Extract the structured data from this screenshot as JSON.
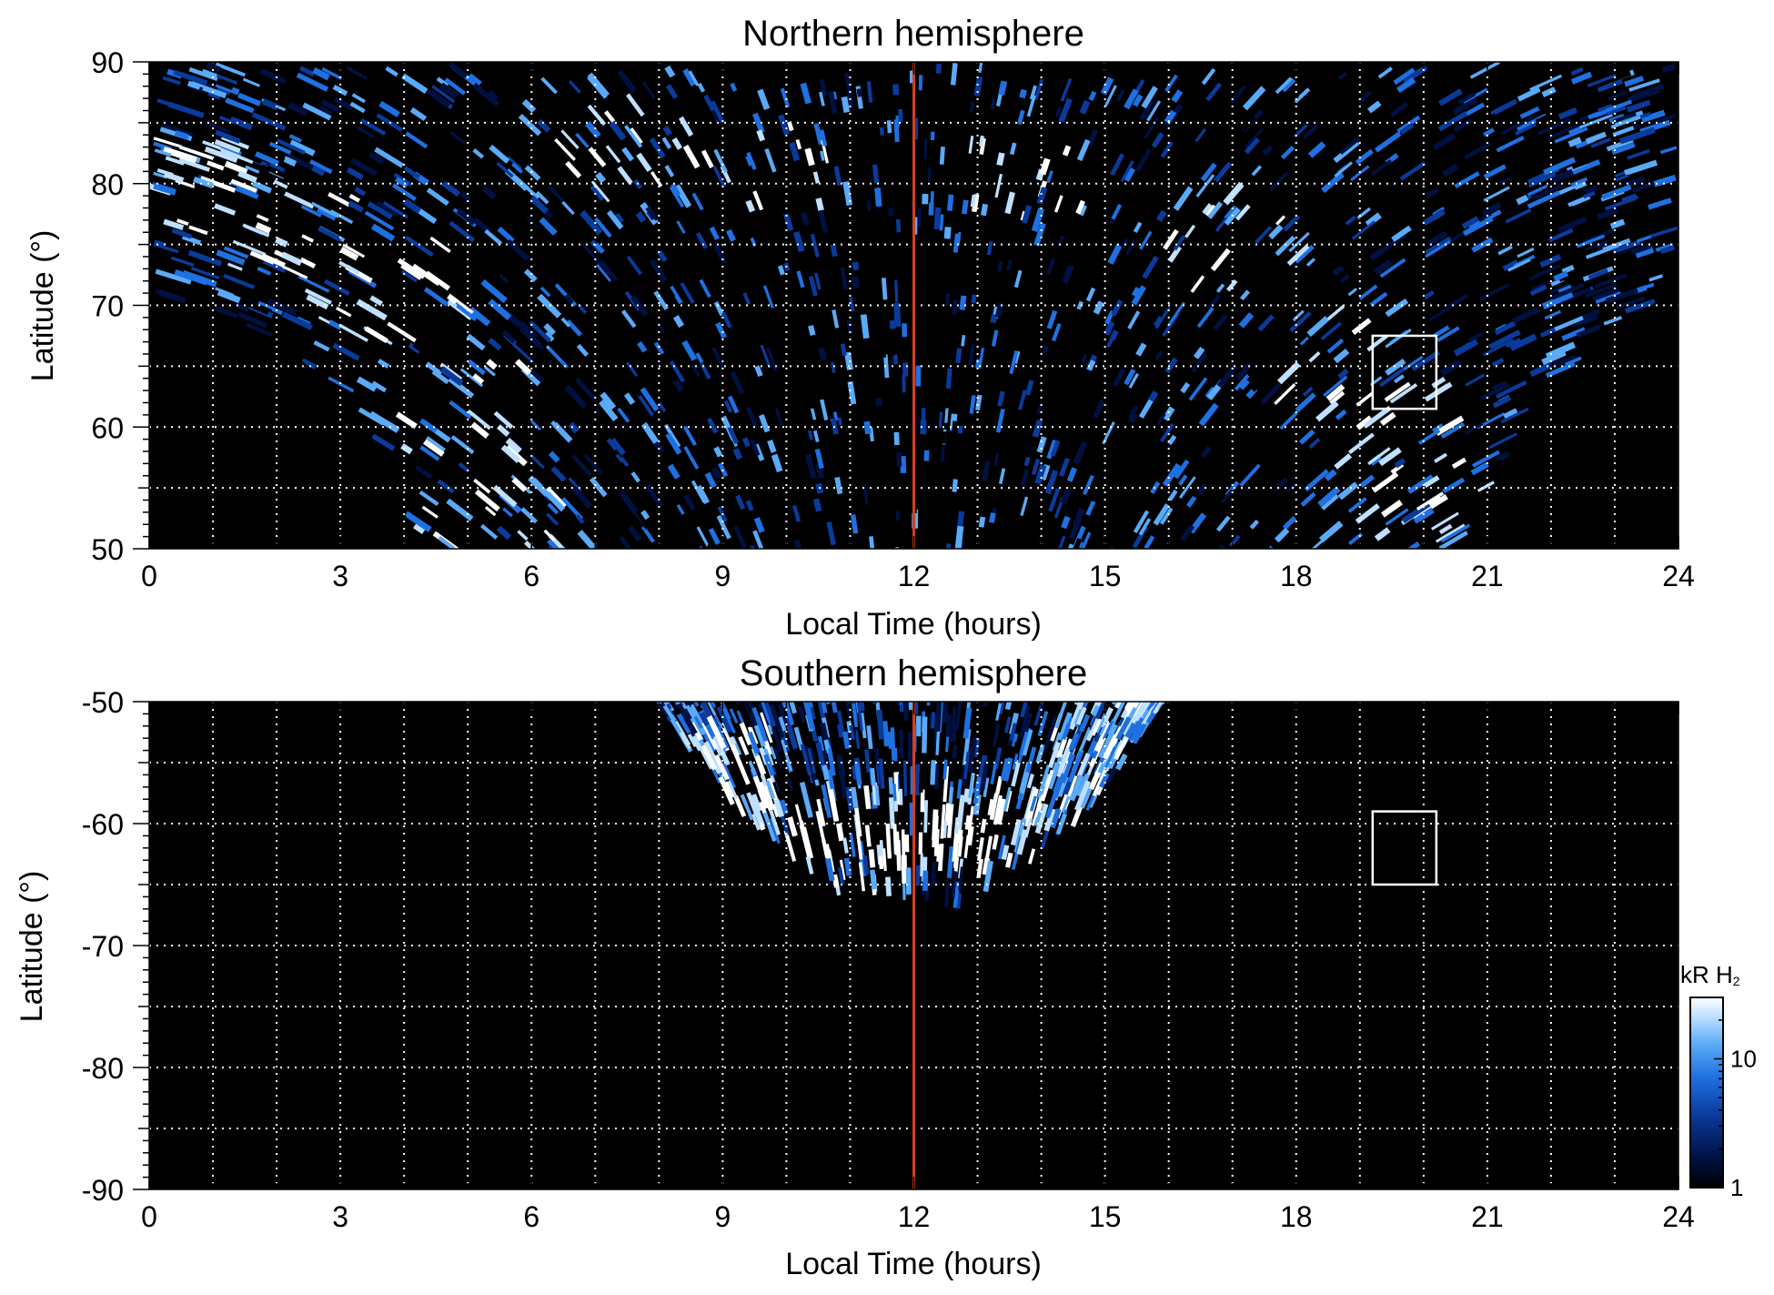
{
  "chart_data": [
    {
      "type": "heatmap",
      "title": "Northern hemisphere",
      "xlabel": "Local Time (hours)",
      "ylabel": "Latitude (°)",
      "xlim": [
        0,
        24
      ],
      "ylim": [
        50,
        90
      ],
      "xticks": [
        "0",
        "3",
        "6",
        "9",
        "12",
        "15",
        "18",
        "21",
        "24"
      ],
      "yticks": [
        "50",
        "60",
        "70",
        "80",
        "90"
      ],
      "grid": true,
      "marker_line": {
        "local_time": 12,
        "color": "#d2401e"
      },
      "highlight_box": {
        "lt_range": [
          19.2,
          20.2
        ],
        "lat_range": [
          61.5,
          67.5
        ]
      },
      "coverage_lower_boundary": [
        [
          0,
          71
        ],
        [
          1,
          69.5
        ],
        [
          2,
          67
        ],
        [
          3,
          63
        ],
        [
          3.6,
          58
        ],
        [
          4,
          53
        ],
        [
          4.25,
          50
        ],
        [
          20.7,
          50
        ],
        [
          21.1,
          55
        ],
        [
          21.6,
          60
        ],
        [
          22.2,
          64
        ],
        [
          23,
          68
        ],
        [
          24,
          71.5
        ]
      ],
      "auroral_oval_lat_vs_lt": [
        [
          0,
          80
        ],
        [
          2,
          77
        ],
        [
          3.5,
          72
        ],
        [
          4.6,
          62
        ],
        [
          5.2,
          52
        ],
        [
          7.5,
          84
        ],
        [
          10,
          82
        ],
        [
          14,
          80
        ],
        [
          17,
          76
        ],
        [
          19,
          66
        ],
        [
          19.5,
          60
        ],
        [
          20,
          53
        ]
      ]
    },
    {
      "type": "heatmap",
      "title": "Southern hemisphere",
      "xlabel": "Local Time (hours)",
      "ylabel": "Latitude (°)",
      "xlim": [
        0,
        24
      ],
      "ylim": [
        -90,
        -50
      ],
      "xticks": [
        "0",
        "3",
        "6",
        "9",
        "12",
        "15",
        "18",
        "21",
        "24"
      ],
      "yticks": [
        "-90",
        "-80",
        "-70",
        "-60",
        "-50"
      ],
      "grid": true,
      "marker_line": {
        "local_time": 12,
        "color": "#d2401e"
      },
      "highlight_box": {
        "lt_range": [
          19.2,
          20.2
        ],
        "lat_range": [
          -65,
          -59
        ]
      },
      "coverage_outer_boundary": [
        [
          8,
          -50
        ],
        [
          8.6,
          -55
        ],
        [
          9.4,
          -60
        ],
        [
          10.3,
          -64
        ],
        [
          11.2,
          -67.5
        ],
        [
          12,
          -66
        ],
        [
          12.8,
          -67.5
        ],
        [
          13.7,
          -64
        ],
        [
          14.6,
          -60
        ],
        [
          15.3,
          -55
        ],
        [
          15.9,
          -50
        ]
      ],
      "auroral_oval_lat_vs_lt": [
        [
          9,
          -56
        ],
        [
          10,
          -61
        ],
        [
          11,
          -63
        ],
        [
          12,
          -61
        ],
        [
          13,
          -62
        ],
        [
          14,
          -59
        ],
        [
          15,
          -53
        ]
      ]
    }
  ],
  "colorbar": {
    "title_kr": "kR H",
    "title_sub": "2",
    "scale": "log",
    "range": [
      1,
      30
    ],
    "ticks": [
      "10",
      "1"
    ],
    "colors": [
      "#000000",
      "#001040",
      "#0a3a9a",
      "#1f70e0",
      "#5aaaf7",
      "#bfe0ff",
      "#ffffff"
    ]
  }
}
